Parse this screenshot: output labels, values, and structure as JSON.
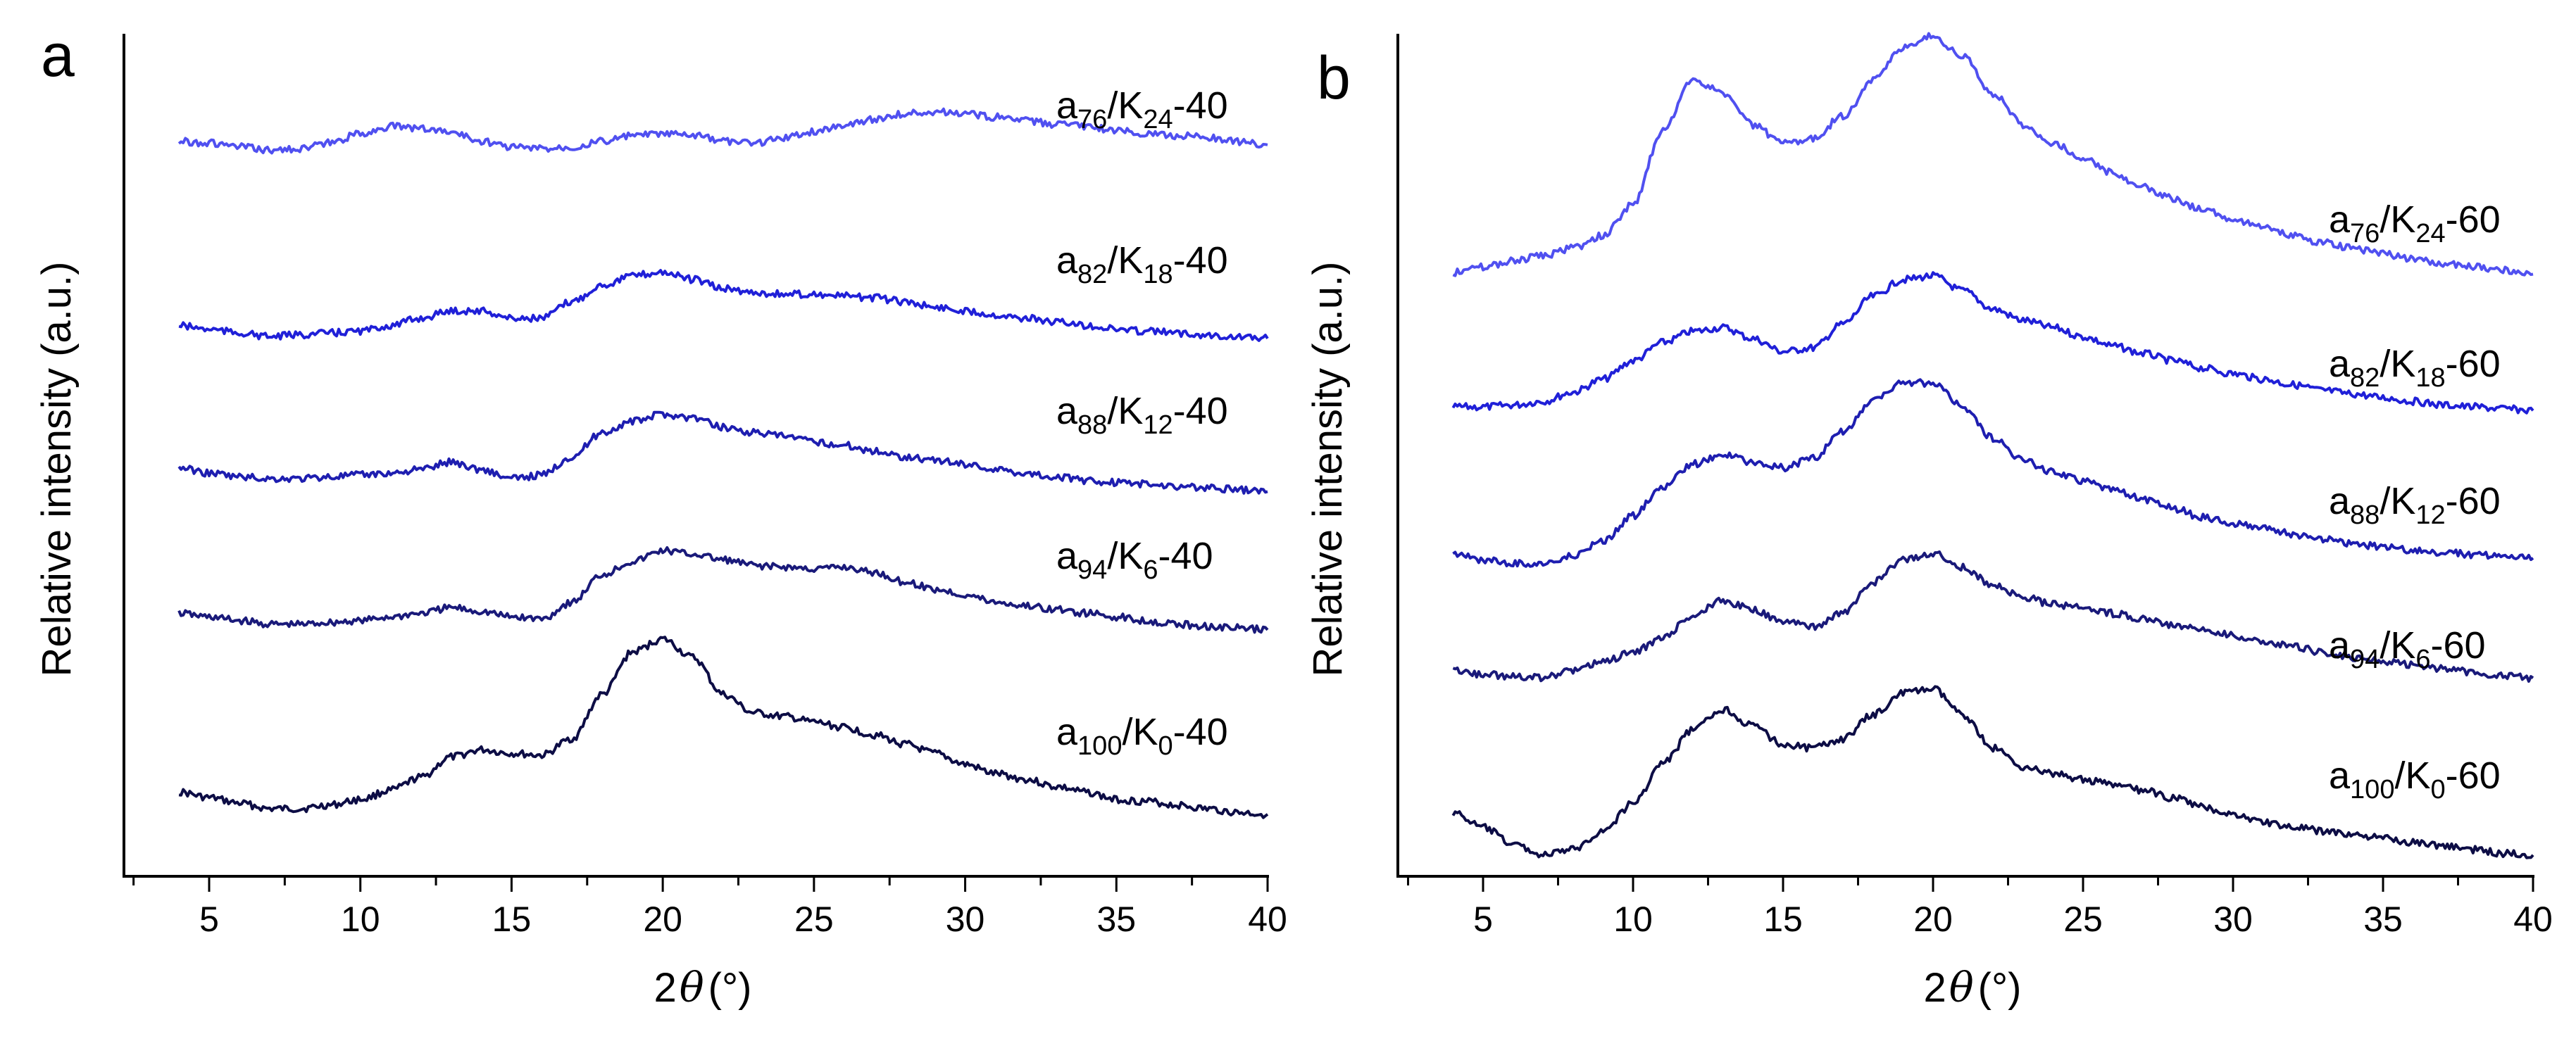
{
  "figure": {
    "panels": [
      "a",
      "b"
    ]
  },
  "chart_data": [
    {
      "panel": "a",
      "type": "line",
      "xlabel": "2θ(°)",
      "xlabel_parts": {
        "prefix": "2",
        "symbol": "θ",
        "suffix": "(°)"
      },
      "ylabel": "Relative intensity (a.u.)",
      "xlim": [
        2.5,
        40
      ],
      "xticks": [
        5,
        10,
        15,
        20,
        25,
        30,
        35,
        40
      ],
      "yticks": "none",
      "grid": false,
      "legend": "inline labels beside each curve",
      "y_units": "relative intensity (a.u.), stacked vertically",
      "series": [
        {
          "label": "a100/K0-40",
          "label_parts": [
            [
              "a",
              ""
            ],
            [
              "100",
              "sub"
            ],
            [
              "/K",
              ""
            ],
            [
              "0",
              "sub"
            ],
            [
              "-40",
              ""
            ]
          ],
          "color": "#0d0d45",
          "x": [
            4,
            5,
            6,
            7,
            8,
            9,
            10,
            11,
            12,
            13,
            14,
            15,
            16,
            17,
            18,
            19,
            20,
            21,
            22,
            23,
            24,
            25,
            26,
            27,
            28,
            29,
            30,
            31,
            32,
            33,
            34,
            35,
            36,
            37,
            38,
            39,
            40
          ],
          "y": [
            0.17,
            0.14,
            0.11,
            0.08,
            0.08,
            0.1,
            0.13,
            0.18,
            0.25,
            0.36,
            0.4,
            0.38,
            0.37,
            0.46,
            0.7,
            0.93,
            1.0,
            0.9,
            0.7,
            0.6,
            0.58,
            0.55,
            0.52,
            0.48,
            0.43,
            0.38,
            0.32,
            0.27,
            0.24,
            0.2,
            0.17,
            0.13,
            0.12,
            0.1,
            0.08,
            0.06,
            0.05
          ]
        },
        {
          "label": "a94/K6-40",
          "label_parts": [
            [
              "a",
              ""
            ],
            [
              "94",
              "sub"
            ],
            [
              "/K",
              ""
            ],
            [
              "6",
              "sub"
            ],
            [
              "-40",
              ""
            ]
          ],
          "color": "#1a1a7a",
          "x": [
            4,
            5,
            6,
            7,
            8,
            9,
            10,
            11,
            12,
            13,
            14,
            15,
            16,
            17,
            18,
            19,
            20,
            21,
            22,
            23,
            24,
            25,
            26,
            27,
            28,
            29,
            30,
            31,
            32,
            33,
            34,
            35,
            36,
            37,
            38,
            39,
            40
          ],
          "y": [
            1.14,
            1.12,
            1.1,
            1.08,
            1.08,
            1.09,
            1.1,
            1.12,
            1.14,
            1.17,
            1.15,
            1.12,
            1.11,
            1.2,
            1.35,
            1.42,
            1.48,
            1.46,
            1.43,
            1.4,
            1.39,
            1.38,
            1.39,
            1.36,
            1.31,
            1.27,
            1.24,
            1.2,
            1.18,
            1.16,
            1.14,
            1.12,
            1.1,
            1.08,
            1.07,
            1.06,
            1.05
          ]
        },
        {
          "label": "a88/K12-40",
          "label_parts": [
            [
              "a",
              ""
            ],
            [
              "88",
              "sub"
            ],
            [
              "/K",
              ""
            ],
            [
              "12",
              "sub"
            ],
            [
              "-40",
              ""
            ]
          ],
          "color": "#1e1eb0",
          "x": [
            4,
            5,
            6,
            7,
            8,
            9,
            10,
            11,
            12,
            13,
            14,
            15,
            16,
            17,
            18,
            19,
            20,
            21,
            22,
            23,
            24,
            25,
            26,
            27,
            28,
            29,
            30,
            31,
            32,
            33,
            34,
            35,
            36,
            37,
            38,
            39,
            40
          ],
          "y": [
            1.93,
            1.9,
            1.88,
            1.87,
            1.87,
            1.88,
            1.89,
            1.9,
            1.92,
            1.96,
            1.92,
            1.87,
            1.89,
            1.99,
            2.12,
            2.18,
            2.22,
            2.2,
            2.15,
            2.12,
            2.1,
            2.07,
            2.05,
            2.02,
            1.99,
            1.97,
            1.95,
            1.92,
            1.9,
            1.88,
            1.86,
            1.85,
            1.84,
            1.83,
            1.82,
            1.81,
            1.8
          ]
        },
        {
          "label": "a82/K18-40",
          "label_parts": [
            [
              "a",
              ""
            ],
            [
              "82",
              "sub"
            ],
            [
              "/K",
              ""
            ],
            [
              "18",
              "sub"
            ],
            [
              "-40",
              ""
            ]
          ],
          "color": "#2020d8",
          "x": [
            4,
            5,
            6,
            7,
            8,
            9,
            10,
            11,
            12,
            13,
            14,
            15,
            16,
            17,
            18,
            19,
            20,
            21,
            22,
            23,
            24,
            25,
            26,
            27,
            28,
            29,
            30,
            31,
            32,
            33,
            34,
            35,
            36,
            37,
            38,
            39,
            40
          ],
          "y": [
            2.7,
            2.68,
            2.66,
            2.64,
            2.65,
            2.66,
            2.67,
            2.7,
            2.74,
            2.78,
            2.78,
            2.74,
            2.74,
            2.83,
            2.92,
            2.97,
            2.99,
            2.95,
            2.9,
            2.88,
            2.87,
            2.87,
            2.86,
            2.85,
            2.83,
            2.8,
            2.78,
            2.76,
            2.74,
            2.72,
            2.7,
            2.68,
            2.67,
            2.66,
            2.65,
            2.64,
            2.63
          ]
        },
        {
          "label": "a76/K24-40",
          "label_parts": [
            [
              "a",
              ""
            ],
            [
              "76",
              "sub"
            ],
            [
              "/K",
              ""
            ],
            [
              "24",
              "sub"
            ],
            [
              "-40",
              ""
            ]
          ],
          "color": "#5050f0",
          "x": [
            4,
            5,
            6,
            7,
            8,
            9,
            10,
            11,
            12,
            13,
            14,
            15,
            16,
            17,
            18,
            19,
            20,
            21,
            22,
            23,
            24,
            25,
            26,
            27,
            28,
            29,
            30,
            31,
            32,
            33,
            34,
            35,
            36,
            37,
            38,
            39,
            40
          ],
          "y": [
            3.7,
            3.69,
            3.67,
            3.65,
            3.66,
            3.69,
            3.74,
            3.78,
            3.77,
            3.75,
            3.7,
            3.67,
            3.66,
            3.67,
            3.7,
            3.73,
            3.74,
            3.73,
            3.7,
            3.69,
            3.72,
            3.75,
            3.79,
            3.82,
            3.85,
            3.86,
            3.85,
            3.83,
            3.81,
            3.79,
            3.78,
            3.76,
            3.74,
            3.73,
            3.72,
            3.7,
            3.68
          ]
        }
      ]
    },
    {
      "panel": "b",
      "type": "line",
      "xlabel": "2θ(°)",
      "xlabel_parts": {
        "prefix": "2",
        "symbol": "θ",
        "suffix": "(°)"
      },
      "ylabel": "Relative intensity (a.u.)",
      "xlim": [
        2.5,
        40
      ],
      "xticks": [
        5,
        10,
        15,
        20,
        25,
        30,
        35,
        40
      ],
      "yticks": "none",
      "grid": false,
      "legend": "inline labels beside each curve",
      "y_units": "relative intensity (a.u.), stacked vertically",
      "series": [
        {
          "label": "a100/K0-60",
          "label_parts": [
            [
              "a",
              ""
            ],
            [
              "100",
              "sub"
            ],
            [
              "/K",
              ""
            ],
            [
              "0",
              "sub"
            ],
            [
              "-60",
              ""
            ]
          ],
          "color": "#0d0d45",
          "x": [
            4,
            5,
            6,
            7,
            8,
            9,
            10,
            11,
            12,
            13,
            14,
            15,
            16,
            17,
            18,
            19,
            20,
            21,
            22,
            23,
            24,
            25,
            26,
            27,
            28,
            29,
            30,
            31,
            32,
            33,
            34,
            35,
            36,
            37,
            38,
            39,
            40
          ],
          "y": [
            0.25,
            0.17,
            0.08,
            0.02,
            0.05,
            0.15,
            0.3,
            0.52,
            0.7,
            0.81,
            0.72,
            0.62,
            0.6,
            0.65,
            0.78,
            0.9,
            0.92,
            0.78,
            0.6,
            0.5,
            0.46,
            0.43,
            0.4,
            0.37,
            0.33,
            0.28,
            0.24,
            0.2,
            0.17,
            0.15,
            0.13,
            0.11,
            0.09,
            0.07,
            0.05,
            0.03,
            0.02
          ]
        },
        {
          "label": "a94/K6-60",
          "label_parts": [
            [
              "a",
              ""
            ],
            [
              "94",
              "sub"
            ],
            [
              "/K",
              ""
            ],
            [
              "6",
              "sub"
            ],
            [
              "-60",
              ""
            ]
          ],
          "color": "#1a1a7a",
          "x": [
            4,
            5,
            6,
            7,
            8,
            9,
            10,
            11,
            12,
            13,
            14,
            15,
            16,
            17,
            18,
            19,
            20,
            21,
            22,
            23,
            24,
            25,
            26,
            27,
            28,
            29,
            30,
            31,
            32,
            33,
            34,
            35,
            36,
            37,
            38,
            39,
            40
          ],
          "y": [
            1.02,
            1.0,
            0.99,
            0.98,
            1.02,
            1.07,
            1.12,
            1.2,
            1.32,
            1.4,
            1.35,
            1.28,
            1.26,
            1.33,
            1.5,
            1.62,
            1.66,
            1.58,
            1.48,
            1.42,
            1.38,
            1.36,
            1.33,
            1.3,
            1.27,
            1.24,
            1.21,
            1.18,
            1.15,
            1.12,
            1.09,
            1.07,
            1.05,
            1.03,
            1.01,
            0.99,
            0.98
          ]
        },
        {
          "label": "a88/K12-60",
          "label_parts": [
            [
              "a",
              ""
            ],
            [
              "88",
              "sub"
            ],
            [
              "/K",
              ""
            ],
            [
              "12",
              "sub"
            ],
            [
              "-60",
              ""
            ]
          ],
          "color": "#1e1eb0",
          "x": [
            4,
            5,
            6,
            7,
            8,
            9,
            10,
            11,
            12,
            13,
            14,
            15,
            16,
            17,
            18,
            19,
            20,
            21,
            22,
            23,
            24,
            25,
            26,
            27,
            28,
            29,
            30,
            31,
            32,
            33,
            34,
            35,
            36,
            37,
            38,
            39,
            40
          ],
          "y": [
            1.65,
            1.62,
            1.6,
            1.6,
            1.64,
            1.72,
            1.86,
            2.02,
            2.14,
            2.19,
            2.15,
            2.12,
            2.17,
            2.32,
            2.48,
            2.58,
            2.58,
            2.45,
            2.28,
            2.16,
            2.1,
            2.05,
            2.0,
            1.95,
            1.9,
            1.85,
            1.82,
            1.79,
            1.76,
            1.73,
            1.71,
            1.69,
            1.67,
            1.66,
            1.65,
            1.64,
            1.63
          ]
        },
        {
          "label": "a82/K18-60",
          "label_parts": [
            [
              "a",
              ""
            ],
            [
              "82",
              "sub"
            ],
            [
              "/K",
              ""
            ],
            [
              "18",
              "sub"
            ],
            [
              "-60",
              ""
            ]
          ],
          "color": "#2020d8",
          "x": [
            4,
            5,
            6,
            7,
            8,
            9,
            10,
            11,
            12,
            13,
            14,
            15,
            16,
            17,
            18,
            19,
            20,
            21,
            22,
            23,
            24,
            25,
            26,
            27,
            28,
            29,
            30,
            31,
            32,
            33,
            34,
            35,
            36,
            37,
            38,
            39,
            40
          ],
          "y": [
            2.45,
            2.45,
            2.46,
            2.48,
            2.53,
            2.6,
            2.7,
            2.8,
            2.86,
            2.88,
            2.82,
            2.75,
            2.77,
            2.9,
            3.05,
            3.14,
            3.16,
            3.08,
            2.98,
            2.92,
            2.88,
            2.83,
            2.78,
            2.74,
            2.7,
            2.66,
            2.63,
            2.6,
            2.57,
            2.54,
            2.52,
            2.5,
            2.48,
            2.46,
            2.45,
            2.44,
            2.43
          ]
        },
        {
          "label": "a76/K24-60",
          "label_parts": [
            [
              "a",
              ""
            ],
            [
              "76",
              "sub"
            ],
            [
              "/K",
              ""
            ],
            [
              "24",
              "sub"
            ],
            [
              "-60",
              ""
            ]
          ],
          "color": "#5050f0",
          "x": [
            4,
            5,
            6,
            7,
            8,
            9,
            10,
            11,
            12,
            13,
            14,
            15,
            16,
            17,
            18,
            19,
            20,
            21,
            22,
            23,
            24,
            25,
            26,
            27,
            28,
            29,
            30,
            31,
            32,
            33,
            34,
            35,
            36,
            37,
            38,
            39,
            40
          ],
          "y": [
            3.18,
            3.21,
            3.24,
            3.27,
            3.31,
            3.38,
            3.55,
            3.95,
            4.23,
            4.15,
            3.98,
            3.88,
            3.9,
            4.03,
            4.22,
            4.4,
            4.46,
            4.35,
            4.15,
            3.98,
            3.88,
            3.8,
            3.72,
            3.64,
            3.58,
            3.52,
            3.47,
            3.42,
            3.38,
            3.34,
            3.31,
            3.28,
            3.25,
            3.23,
            3.21,
            3.19,
            3.17
          ]
        }
      ]
    }
  ]
}
